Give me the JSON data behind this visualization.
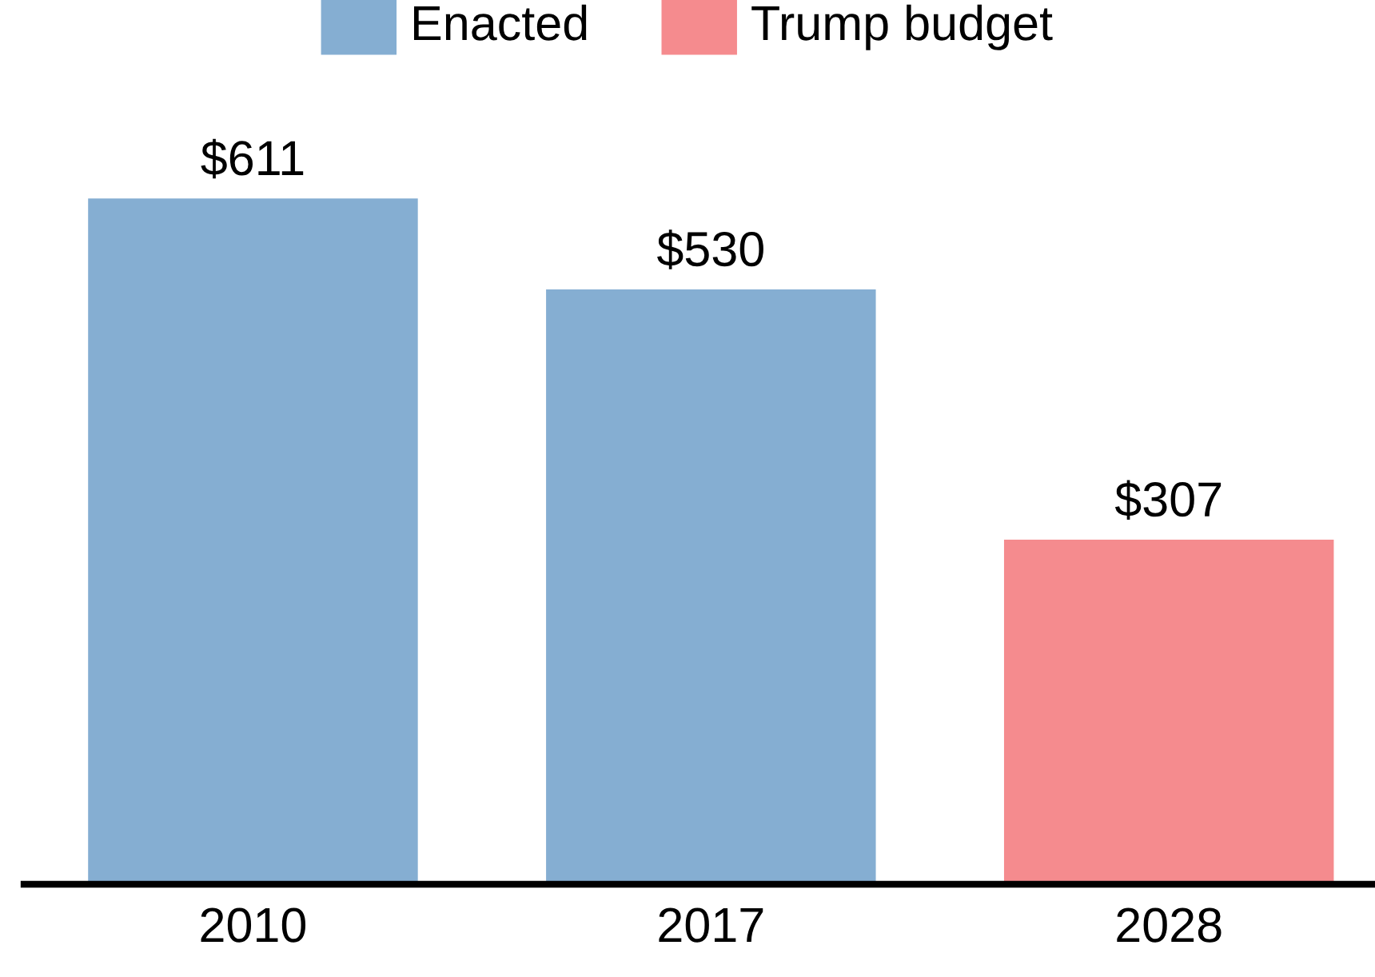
{
  "chart_data": {
    "type": "bar",
    "categories": [
      "2010",
      "2017",
      "2028"
    ],
    "series": [
      {
        "name": "Enacted",
        "color": "#85aed2",
        "values": [
          611,
          530,
          null
        ],
        "value_labels": [
          "$611",
          "$530",
          null
        ]
      },
      {
        "name": "Trump budget",
        "color": "#f58b8e",
        "values": [
          null,
          null,
          307
        ],
        "value_labels": [
          null,
          null,
          "$307"
        ]
      }
    ],
    "legend": "top",
    "grid": false
  }
}
